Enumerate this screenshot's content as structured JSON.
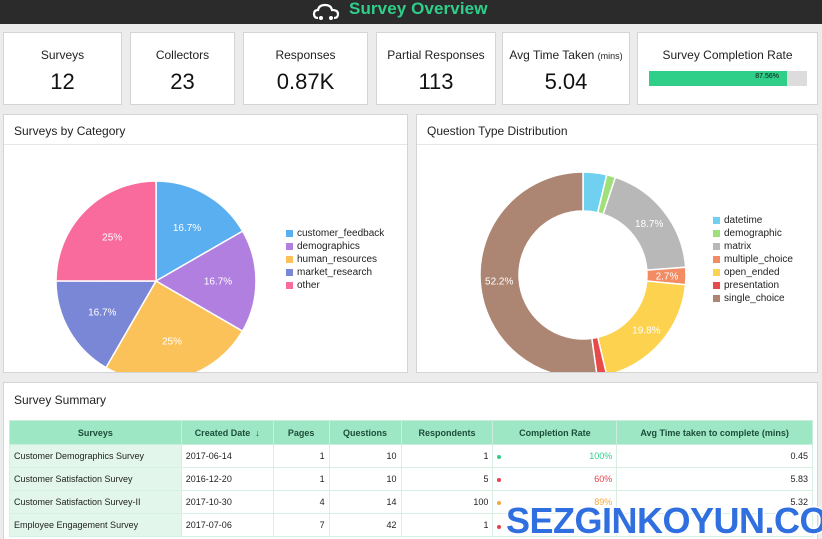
{
  "header": {
    "title": "Survey Overview"
  },
  "kpis": [
    {
      "label": "Surveys",
      "value": "12"
    },
    {
      "label": "Collectors",
      "value": "23"
    },
    {
      "label": "Responses",
      "value": "0.87K"
    },
    {
      "label": "Partial Responses",
      "value": "113"
    },
    {
      "label": "Avg Time Taken",
      "unit": "(mins)",
      "value": "5.04"
    }
  ],
  "completion": {
    "label": "Survey Completion Rate",
    "text": "87.56%",
    "fraction": 0.8756
  },
  "pie_panel": {
    "title": "Surveys by Category"
  },
  "donut_panel": {
    "title": "Question Type Distribution"
  },
  "summary": {
    "title": "Survey Summary",
    "columns": [
      "Surveys",
      "Created Date",
      "Pages",
      "Questions",
      "Respondents",
      "Completion Rate",
      "Avg Time taken to complete (mins)"
    ],
    "sort_icon": "arrow-down-icon",
    "rows": [
      {
        "name": "Customer Demographics Survey",
        "date": "2017-06-14",
        "pages": "1",
        "questions": "10",
        "respondents": "1",
        "rate": "100%",
        "rate_color": "#2fcf8a",
        "time": "0.45"
      },
      {
        "name": "Customer Satisfaction Survey",
        "date": "2016-12-20",
        "pages": "1",
        "questions": "10",
        "respondents": "5",
        "rate": "60%",
        "rate_color": "#e8414a",
        "time": "5.83"
      },
      {
        "name": "Customer Satisfaction Survey-II",
        "date": "2017-10-30",
        "pages": "4",
        "questions": "14",
        "respondents": "100",
        "rate": "89%",
        "rate_color": "#f2a93b",
        "time": "5.32"
      },
      {
        "name": "Employee Engagement Survey",
        "date": "2017-07-06",
        "pages": "7",
        "questions": "42",
        "respondents": "1",
        "rate": "",
        "rate_color": "#e8414a",
        "time": ""
      }
    ]
  },
  "watermark": "SEZGINKOYUN.COM",
  "colors": {
    "accent": "#2fcf8a",
    "header_bg": "#2b2b2b",
    "table_header": "#9ee7c4"
  },
  "chart_data": [
    {
      "type": "pie",
      "title": "Surveys by Category",
      "categories": [
        "customer_feedback",
        "demographics",
        "human_resources",
        "market_research",
        "other"
      ],
      "values": [
        16.7,
        16.7,
        25,
        16.7,
        25
      ],
      "labels": [
        "16.7%",
        "16.7%",
        "25%",
        "16.7%",
        "25%"
      ],
      "colors": [
        "#5aaff0",
        "#b07fe0",
        "#fbc25a",
        "#7a86d6",
        "#f86b9c"
      ],
      "legend": "right"
    },
    {
      "type": "pie",
      "title": "Question Type Distribution",
      "donut": true,
      "categories": [
        "datetime",
        "demographic",
        "matrix",
        "multiple_choice",
        "open_ended",
        "presentation",
        "single_choice"
      ],
      "values": [
        3.7,
        1.4,
        18.7,
        2.7,
        19.8,
        1.5,
        52.2
      ],
      "labels": [
        "",
        "",
        "18.7%",
        "2.7%",
        "19.8%",
        "",
        "52.2%"
      ],
      "colors": [
        "#6fd0f0",
        "#9fe07a",
        "#b8b8b8",
        "#f38b63",
        "#fdd24f",
        "#e84a4a",
        "#ad8573"
      ],
      "legend": "right"
    }
  ]
}
